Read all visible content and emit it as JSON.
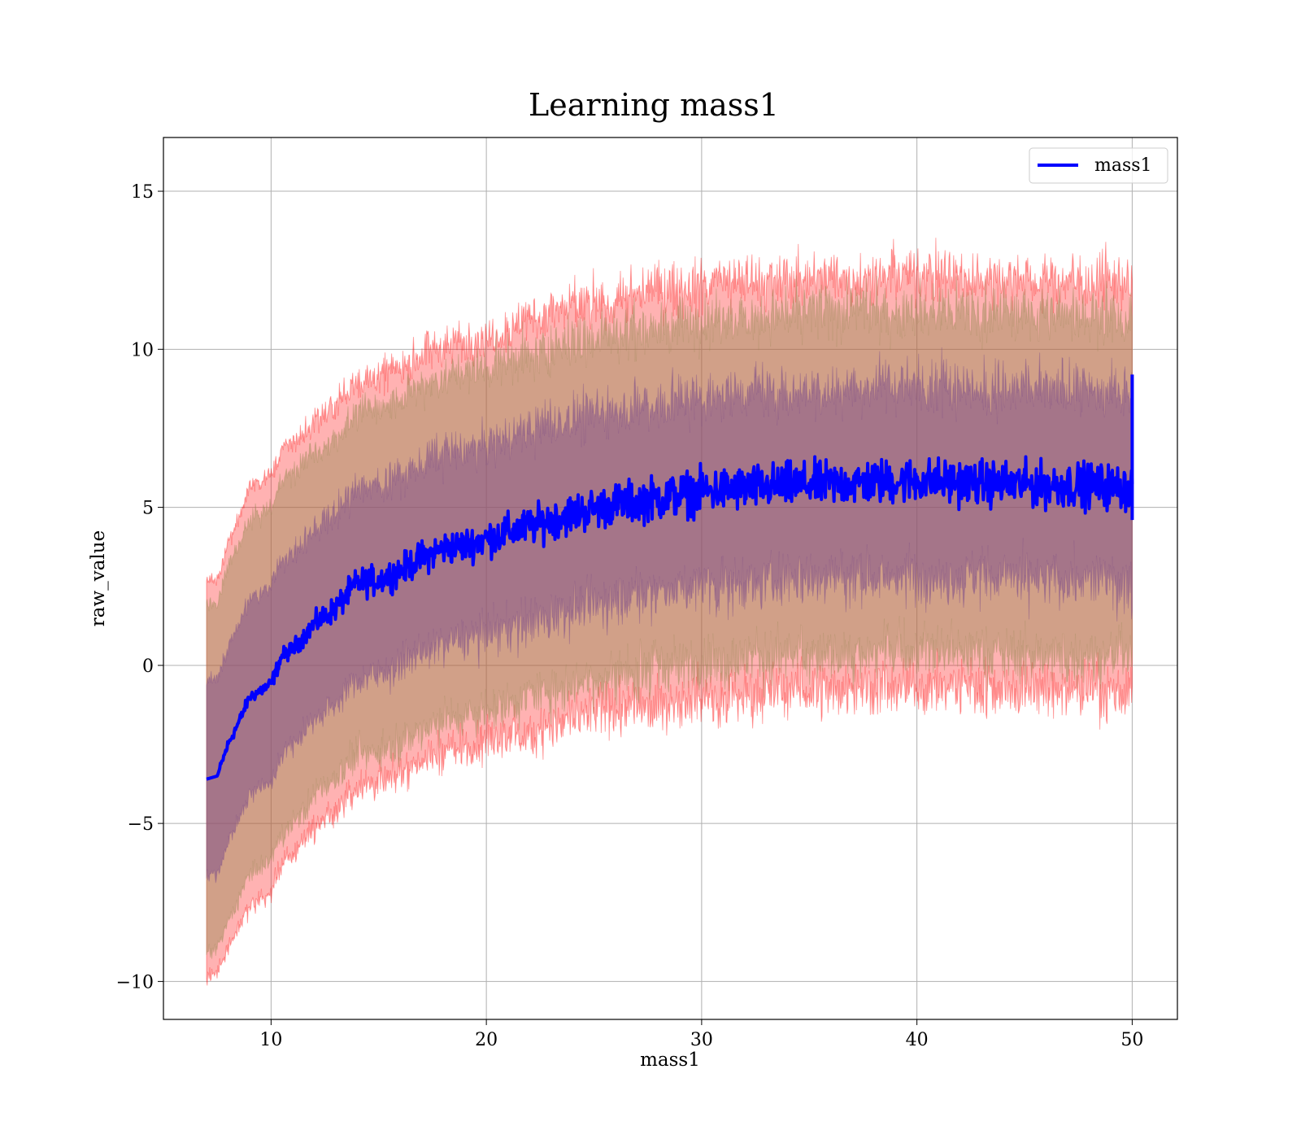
{
  "chart_data": {
    "type": "line",
    "title": "Learning mass1",
    "xlabel": "mass1",
    "ylabel": "raw_value",
    "xlim": [
      5,
      52.1
    ],
    "ylim": [
      -11.2,
      16.7
    ],
    "xticks": [
      10,
      20,
      30,
      40,
      50
    ],
    "yticks": [
      -10,
      -5,
      0,
      5,
      10,
      15
    ],
    "xtick_labels": [
      "10",
      "20",
      "30",
      "40",
      "50"
    ],
    "ytick_labels": [
      "−10",
      "−5",
      "0",
      "5",
      "10",
      "15"
    ],
    "grid": true,
    "legend": {
      "placement": "top-right",
      "entries": [
        {
          "label": "mass1",
          "color": "#0000ff"
        }
      ]
    },
    "series": [
      {
        "name": "mass1",
        "color": "#0000ff",
        "x": [
          7,
          7.5,
          8,
          8.5,
          9,
          9.5,
          10,
          10.5,
          11,
          11.5,
          12,
          13,
          14,
          15,
          16,
          17,
          18,
          19,
          20,
          22,
          24,
          26,
          28,
          30,
          32,
          34,
          36,
          38,
          40,
          42,
          44,
          46,
          48,
          50
        ],
        "y": [
          -3.6,
          -3.5,
          -2.5,
          -1.8,
          -1.0,
          -0.8,
          -0.6,
          0.3,
          0.5,
          0.9,
          1.3,
          1.8,
          2.6,
          2.7,
          3.0,
          3.4,
          3.7,
          3.8,
          4.0,
          4.4,
          4.8,
          5.1,
          5.3,
          5.5,
          5.6,
          5.7,
          5.75,
          5.8,
          5.85,
          5.8,
          5.75,
          5.7,
          5.7,
          5.6
        ],
        "noise": [
          0.1,
          0.1,
          0.15,
          0.15,
          0.15,
          0.2,
          0.2,
          0.2,
          0.25,
          0.25,
          0.3,
          0.35,
          0.4,
          0.4,
          0.4,
          0.45,
          0.45,
          0.45,
          0.5,
          0.5,
          0.55,
          0.55,
          0.6,
          0.6,
          0.6,
          0.6,
          0.6,
          0.6,
          0.6,
          0.6,
          0.6,
          0.6,
          0.6,
          0.6
        ]
      }
    ],
    "bands": [
      {
        "level": "outer",
        "color": "#ff0000",
        "opacity": 0.3,
        "half_width": [
          6.3,
          6.2,
          6.4,
          6.5,
          6.6,
          6.6,
          6.6,
          6.6,
          6.5,
          6.4,
          6.4,
          6.4,
          6.4,
          6.4,
          6.4,
          6.4,
          6.4,
          6.4,
          6.5,
          6.5,
          6.5,
          6.5,
          6.5,
          6.5,
          6.5,
          6.5,
          6.5,
          6.5,
          6.5,
          6.5,
          6.5,
          6.5,
          6.5,
          6.5
        ]
      },
      {
        "level": "middle",
        "color": "#9a8a55",
        "opacity": 0.45,
        "half_width": [
          5.5,
          5.5,
          5.6,
          5.6,
          5.6,
          5.6,
          5.6,
          5.6,
          5.5,
          5.5,
          5.4,
          5.4,
          5.4,
          5.4,
          5.4,
          5.4,
          5.4,
          5.4,
          5.4,
          5.4,
          5.4,
          5.4,
          5.4,
          5.4,
          5.4,
          5.4,
          5.4,
          5.4,
          5.4,
          5.4,
          5.4,
          5.4,
          5.4,
          5.4
        ]
      },
      {
        "level": "inner",
        "color": "#7a4a8a",
        "opacity": 0.5,
        "half_width": [
          3.1,
          3.1,
          3.1,
          3.1,
          3.1,
          3.1,
          3.1,
          3.1,
          3.0,
          3.0,
          3.0,
          3.0,
          3.0,
          3.0,
          3.0,
          3.0,
          3.0,
          3.0,
          3.0,
          3.0,
          3.0,
          3.0,
          3.0,
          3.0,
          3.0,
          3.0,
          3.0,
          3.0,
          3.0,
          3.0,
          3.0,
          3.0,
          3.0,
          3.0
        ]
      }
    ],
    "band_noise": [
      0.2,
      0.2,
      0.25,
      0.25,
      0.3,
      0.3,
      0.3,
      0.35,
      0.35,
      0.4,
      0.4,
      0.45,
      0.5,
      0.5,
      0.55,
      0.55,
      0.6,
      0.6,
      0.65,
      0.7,
      0.75,
      0.75,
      0.8,
      0.8,
      0.8,
      0.8,
      0.8,
      0.8,
      0.8,
      0.8,
      0.8,
      0.8,
      0.8,
      0.8
    ],
    "final_spike": {
      "x": 50,
      "y_min": 4.6,
      "y_max": 9.2
    }
  }
}
